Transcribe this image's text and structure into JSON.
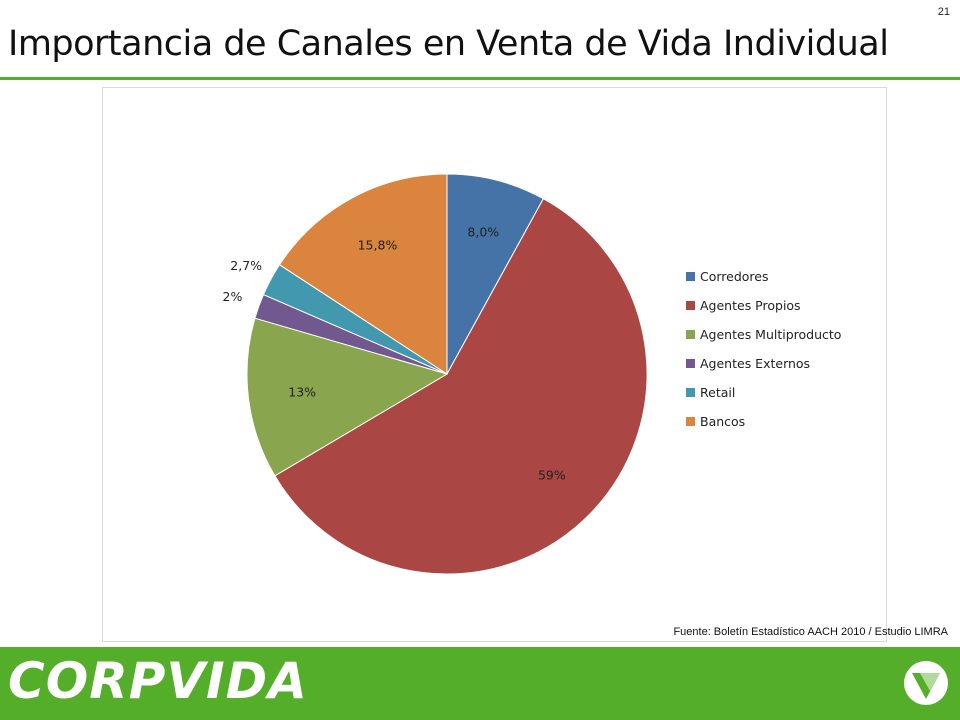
{
  "slide": {
    "page_number": "21",
    "title": "Importancia de Canales en Venta de Vida Individual",
    "source": "Fuente: Boletín Estadístico AACH 2010 / Estudio LIMRA",
    "logo_text": "CORPVIDA"
  },
  "colors": {
    "accent_green": "#55ae2a",
    "slice_corredores": "#4572a7",
    "slice_agentes_propios": "#aa4643",
    "slice_agentes_multiproducto": "#89a54e",
    "slice_agentes_externos": "#71588f",
    "slice_retail": "#4198af",
    "slice_bancos": "#db843d"
  },
  "chart_data": {
    "type": "pie",
    "title": "",
    "start": "12 o'clock, clockwise",
    "legend_position": "right",
    "categories": [
      "Corredores",
      "Agentes Propios",
      "Agentes Multiproducto",
      "Agentes Externos",
      "Retail",
      "Bancos"
    ],
    "values": [
      8.0,
      58.5,
      13.0,
      2.0,
      2.7,
      15.8
    ],
    "data_labels": [
      "8,0%",
      "59%",
      "13%",
      "2%",
      "2,7%",
      "15,8%"
    ],
    "colors": [
      "#4572a7",
      "#aa4643",
      "#89a54e",
      "#71588f",
      "#4198af",
      "#db843d"
    ]
  }
}
